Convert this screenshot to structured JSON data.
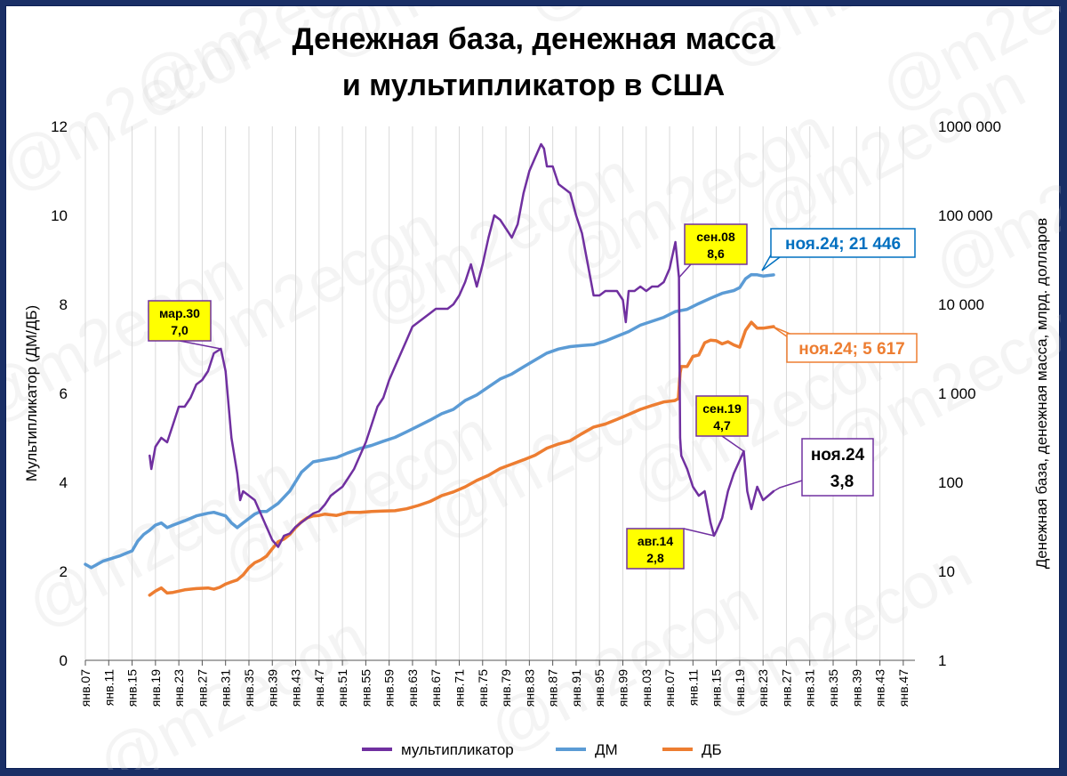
{
  "chart_data": {
    "type": "line",
    "title_line1": "Денежная база, денежная масса",
    "title_line2": "и мультипликатор в США",
    "ylabel_left": "Мультипликатор (ДМ/ДБ)",
    "ylabel_right": "Денежная база, денежная масса, млрд. долларов",
    "left_ylim": [
      0,
      12
    ],
    "left_ticks": [
      "0",
      "2",
      "4",
      "6",
      "8",
      "10",
      "12"
    ],
    "right_scale": "log",
    "right_ylim": [
      1,
      1000000
    ],
    "right_ticks": [
      "1",
      "10",
      "100",
      "1 000",
      "10 000",
      "100 000",
      "1000 000"
    ],
    "x_range": [
      1907,
      2049
    ],
    "x_ticks": [
      "янв.07",
      "янв.11",
      "янв.15",
      "янв.19",
      "янв.23",
      "янв.27",
      "янв.31",
      "янв.35",
      "янв.39",
      "янв.43",
      "янв.47",
      "янв.51",
      "янв.55",
      "янв.59",
      "янв.63",
      "янв.67",
      "янв.71",
      "янв.75",
      "янв.79",
      "янв.83",
      "янв.87",
      "янв.91",
      "янв.95",
      "янв.99",
      "янв.03",
      "янв.07",
      "янв.11",
      "янв.15",
      "янв.19",
      "янв.23",
      "янв.27",
      "янв.31",
      "янв.35",
      "янв.39",
      "янв.43",
      "янв.47"
    ],
    "series": [
      {
        "name": "мультипликатор",
        "axis": "left",
        "color": "#7030a0",
        "points": [
          [
            1918.0,
            4.6
          ],
          [
            1918.3,
            4.3
          ],
          [
            1919,
            4.8
          ],
          [
            1920,
            5.0
          ],
          [
            1921,
            4.9
          ],
          [
            1922,
            5.3
          ],
          [
            1923,
            5.7
          ],
          [
            1924,
            5.7
          ],
          [
            1925,
            5.9
          ],
          [
            1926,
            6.2
          ],
          [
            1927,
            6.3
          ],
          [
            1928,
            6.5
          ],
          [
            1929,
            6.9
          ],
          [
            1930.2,
            7.0
          ],
          [
            1931,
            6.5
          ],
          [
            1932,
            5.0
          ],
          [
            1933,
            4.2
          ],
          [
            1933.5,
            3.6
          ],
          [
            1934,
            3.8
          ],
          [
            1935,
            3.7
          ],
          [
            1936,
            3.6
          ],
          [
            1937,
            3.3
          ],
          [
            1938,
            3.0
          ],
          [
            1939,
            2.7
          ],
          [
            1940,
            2.55
          ],
          [
            1941,
            2.8
          ],
          [
            1942,
            2.85
          ],
          [
            1943,
            3.0
          ],
          [
            1944,
            3.1
          ],
          [
            1945,
            3.2
          ],
          [
            1946,
            3.3
          ],
          [
            1947,
            3.35
          ],
          [
            1948,
            3.5
          ],
          [
            1949,
            3.7
          ],
          [
            1950,
            3.8
          ],
          [
            1951,
            3.9
          ],
          [
            1952,
            4.1
          ],
          [
            1953,
            4.3
          ],
          [
            1954,
            4.6
          ],
          [
            1955,
            4.9
          ],
          [
            1956,
            5.3
          ],
          [
            1957,
            5.7
          ],
          [
            1958,
            5.9
          ],
          [
            1959,
            6.3
          ],
          [
            1960,
            6.6
          ],
          [
            1961,
            6.9
          ],
          [
            1962,
            7.2
          ],
          [
            1963,
            7.5
          ],
          [
            1964,
            7.6
          ],
          [
            1965,
            7.7
          ],
          [
            1966,
            7.8
          ],
          [
            1967,
            7.9
          ],
          [
            1968,
            7.9
          ],
          [
            1969,
            7.9
          ],
          [
            1970,
            8.0
          ],
          [
            1971,
            8.2
          ],
          [
            1972,
            8.5
          ],
          [
            1973,
            8.9
          ],
          [
            1974,
            8.4
          ],
          [
            1975,
            8.9
          ],
          [
            1976,
            9.5
          ],
          [
            1977,
            10.0
          ],
          [
            1978,
            9.9
          ],
          [
            1979,
            9.7
          ],
          [
            1980,
            9.5
          ],
          [
            1981,
            9.8
          ],
          [
            1982,
            10.5
          ],
          [
            1983,
            11.0
          ],
          [
            1984,
            11.3
          ],
          [
            1985,
            11.6
          ],
          [
            1985.5,
            11.5
          ],
          [
            1986,
            11.1
          ],
          [
            1987,
            11.1
          ],
          [
            1988,
            10.7
          ],
          [
            1989,
            10.6
          ],
          [
            1990,
            10.5
          ],
          [
            1991,
            10.0
          ],
          [
            1992,
            9.6
          ],
          [
            1993,
            8.9
          ],
          [
            1994,
            8.2
          ],
          [
            1995,
            8.2
          ],
          [
            1996,
            8.3
          ],
          [
            1997,
            8.3
          ],
          [
            1998,
            8.3
          ],
          [
            1999,
            8.1
          ],
          [
            1999.5,
            7.6
          ],
          [
            2000,
            8.3
          ],
          [
            2001,
            8.3
          ],
          [
            2002,
            8.4
          ],
          [
            2003,
            8.3
          ],
          [
            2004,
            8.4
          ],
          [
            2005,
            8.4
          ],
          [
            2006,
            8.5
          ],
          [
            2007,
            8.8
          ],
          [
            2008.0,
            9.4
          ],
          [
            2008.6,
            8.6
          ],
          [
            2008.8,
            5.0
          ],
          [
            2009,
            4.6
          ],
          [
            2010,
            4.3
          ],
          [
            2011,
            3.9
          ],
          [
            2012,
            3.7
          ],
          [
            2013,
            3.8
          ],
          [
            2014,
            3.1
          ],
          [
            2014.6,
            2.8
          ],
          [
            2015,
            2.9
          ],
          [
            2016,
            3.2
          ],
          [
            2017,
            3.8
          ],
          [
            2018,
            4.2
          ],
          [
            2019.7,
            4.7
          ],
          [
            2020.3,
            3.8
          ],
          [
            2021,
            3.4
          ],
          [
            2022,
            3.9
          ],
          [
            2023,
            3.6
          ],
          [
            2024.8,
            3.8
          ]
        ]
      },
      {
        "name": "ДМ",
        "axis": "right",
        "color": "#5b9bd5",
        "points": [
          [
            1907,
            12
          ],
          [
            1908,
            11
          ],
          [
            1910,
            13
          ],
          [
            1913,
            15
          ],
          [
            1914,
            16
          ],
          [
            1915,
            17
          ],
          [
            1916,
            22
          ],
          [
            1917,
            26
          ],
          [
            1918,
            29
          ],
          [
            1919,
            33
          ],
          [
            1920,
            35
          ],
          [
            1921,
            31
          ],
          [
            1922,
            33
          ],
          [
            1924,
            37
          ],
          [
            1926,
            42
          ],
          [
            1928,
            45
          ],
          [
            1929,
            46
          ],
          [
            1930,
            44
          ],
          [
            1931,
            42
          ],
          [
            1932,
            35
          ],
          [
            1933,
            31
          ],
          [
            1934,
            35
          ],
          [
            1936,
            44
          ],
          [
            1937,
            47
          ],
          [
            1938,
            47
          ],
          [
            1940,
            58
          ],
          [
            1942,
            80
          ],
          [
            1944,
            130
          ],
          [
            1946,
            170
          ],
          [
            1948,
            180
          ],
          [
            1950,
            190
          ],
          [
            1952,
            215
          ],
          [
            1954,
            240
          ],
          [
            1956,
            260
          ],
          [
            1958,
            290
          ],
          [
            1960,
            320
          ],
          [
            1962,
            370
          ],
          [
            1964,
            430
          ],
          [
            1966,
            500
          ],
          [
            1968,
            590
          ],
          [
            1970,
            660
          ],
          [
            1972,
            830
          ],
          [
            1974,
            960
          ],
          [
            1976,
            1180
          ],
          [
            1978,
            1450
          ],
          [
            1980,
            1650
          ],
          [
            1982,
            1980
          ],
          [
            1984,
            2370
          ],
          [
            1986,
            2830
          ],
          [
            1988,
            3150
          ],
          [
            1990,
            3350
          ],
          [
            1992,
            3450
          ],
          [
            1994,
            3520
          ],
          [
            1996,
            3870
          ],
          [
            1998,
            4380
          ],
          [
            2000,
            4940
          ],
          [
            2002,
            5830
          ],
          [
            2004,
            6460
          ],
          [
            2006,
            7150
          ],
          [
            2008,
            8300
          ],
          [
            2010,
            8800
          ],
          [
            2012,
            10200
          ],
          [
            2014,
            11700
          ],
          [
            2016,
            13300
          ],
          [
            2018,
            14300
          ],
          [
            2019,
            15400
          ],
          [
            2020,
            19400
          ],
          [
            2021,
            21600
          ],
          [
            2022,
            21500
          ],
          [
            2023,
            20800
          ],
          [
            2024.8,
            21446
          ]
        ]
      },
      {
        "name": "ДБ",
        "axis": "right",
        "color": "#ed7d31",
        "points": [
          [
            1918,
            5.4
          ],
          [
            1919,
            6.0
          ],
          [
            1920,
            6.5
          ],
          [
            1921,
            5.7
          ],
          [
            1922,
            5.8
          ],
          [
            1924,
            6.2
          ],
          [
            1926,
            6.4
          ],
          [
            1928,
            6.5
          ],
          [
            1929,
            6.3
          ],
          [
            1930,
            6.6
          ],
          [
            1931,
            7.2
          ],
          [
            1932,
            7.6
          ],
          [
            1933,
            8.0
          ],
          [
            1934,
            9.1
          ],
          [
            1935,
            11.0
          ],
          [
            1936,
            12.5
          ],
          [
            1937,
            13.4
          ],
          [
            1938,
            14.8
          ],
          [
            1939,
            18.0
          ],
          [
            1940,
            21.5
          ],
          [
            1941,
            23.0
          ],
          [
            1942,
            26.0
          ],
          [
            1943,
            31.0
          ],
          [
            1944,
            36.0
          ],
          [
            1945,
            40.0
          ],
          [
            1946,
            42.0
          ],
          [
            1947,
            42.5
          ],
          [
            1948,
            44.0
          ],
          [
            1950,
            42.5
          ],
          [
            1952,
            46.0
          ],
          [
            1954,
            46.0
          ],
          [
            1956,
            47.0
          ],
          [
            1958,
            47.5
          ],
          [
            1960,
            48.0
          ],
          [
            1962,
            50.5
          ],
          [
            1964,
            55.0
          ],
          [
            1966,
            61.0
          ],
          [
            1968,
            71.0
          ],
          [
            1970,
            78.0
          ],
          [
            1972,
            89.0
          ],
          [
            1974,
            105.0
          ],
          [
            1976,
            120.0
          ],
          [
            1978,
            143.0
          ],
          [
            1980,
            160.0
          ],
          [
            1982,
            179.0
          ],
          [
            1984,
            202.0
          ],
          [
            1986,
            242.0
          ],
          [
            1988,
            270.0
          ],
          [
            1990,
            293.0
          ],
          [
            1992,
            352.0
          ],
          [
            1994,
            418.0
          ],
          [
            1996,
            452.0
          ],
          [
            1998,
            510.0
          ],
          [
            2000,
            580.0
          ],
          [
            2002,
            660.0
          ],
          [
            2004,
            730.0
          ],
          [
            2006,
            800.0
          ],
          [
            2007.9,
            830.0
          ],
          [
            2008.5,
            870.0
          ],
          [
            2008.8,
            1700.0
          ],
          [
            2009,
            2000.0
          ],
          [
            2010,
            2000.0
          ],
          [
            2011,
            2600.0
          ],
          [
            2012,
            2700.0
          ],
          [
            2013,
            3700.0
          ],
          [
            2014,
            3950.0
          ],
          [
            2015,
            3900.0
          ],
          [
            2016,
            3600.0
          ],
          [
            2017,
            3800.0
          ],
          [
            2018,
            3500.0
          ],
          [
            2019,
            3300.0
          ],
          [
            2020,
            5100.0
          ],
          [
            2021,
            6300.0
          ],
          [
            2022,
            5400.0
          ],
          [
            2023,
            5400.0
          ],
          [
            2024.8,
            5617.0
          ]
        ]
      }
    ],
    "annotations": [
      {
        "line1": "мар.30",
        "line2": "7,0"
      },
      {
        "line1": "сен.08",
        "line2": "8,6"
      },
      {
        "line1": "сен.19",
        "line2": "4,7"
      },
      {
        "line1": "авг.14",
        "line2": "2,8"
      },
      {
        "line1": "ноя.24",
        "line2": "3,8"
      },
      {
        "text": "ноя.24; 21 446"
      },
      {
        "text": "ноя.24; 5 617"
      }
    ],
    "legend": [
      "мультипликатор",
      "ДМ",
      "ДБ"
    ],
    "legend_position": "bottom",
    "grid": "vertical",
    "watermark": "@m2econ"
  }
}
